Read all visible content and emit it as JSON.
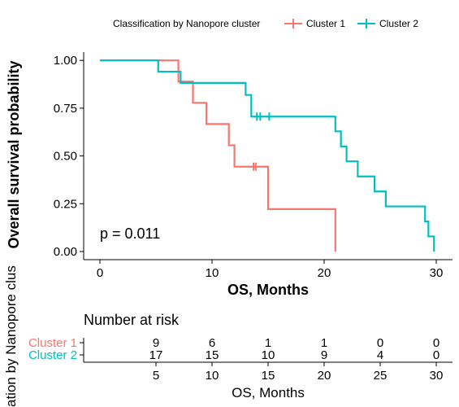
{
  "legend": {
    "title": "Classification by Nanopore cluster",
    "entries": [
      "Cluster 1",
      "Cluster 2"
    ]
  },
  "colors": {
    "cluster1": "#F8766D",
    "cluster2": "#00BFC4"
  },
  "chart_data": {
    "type": "line",
    "subtype": "kaplan-meier",
    "xlabel": "OS, Months",
    "ylabel": "Overall survival probability",
    "xlim": [
      0,
      31
    ],
    "ylim": [
      0,
      1.05
    ],
    "x_ticks": [
      "0",
      "10",
      "20",
      "30"
    ],
    "y_ticks": [
      "0.00",
      "0.25",
      "0.50",
      "0.75",
      "1.00"
    ],
    "grid": false,
    "legend_position": "top",
    "annotation": "p = 0.011",
    "series": [
      {
        "name": "Cluster 1",
        "color": "#F8766D",
        "steps": [
          [
            0,
            1.0
          ],
          [
            7.0,
            0.889
          ],
          [
            8.3,
            0.778
          ],
          [
            9.5,
            0.667
          ],
          [
            11.5,
            0.556
          ],
          [
            12.0,
            0.444
          ],
          [
            15.0,
            0.222
          ],
          [
            21.0,
            0.0
          ]
        ],
        "end_x": 21.0,
        "censor": [
          [
            13.7,
            0.444
          ],
          [
            13.9,
            0.444
          ]
        ]
      },
      {
        "name": "Cluster 2",
        "color": "#00BFC4",
        "steps": [
          [
            0,
            1.0
          ],
          [
            5.2,
            0.941
          ],
          [
            7.2,
            0.882
          ],
          [
            13.0,
            0.819
          ],
          [
            13.5,
            0.706
          ],
          [
            21.0,
            0.629
          ],
          [
            21.5,
            0.55
          ],
          [
            22.0,
            0.472
          ],
          [
            23.0,
            0.393
          ],
          [
            24.5,
            0.314
          ],
          [
            25.5,
            0.236
          ],
          [
            29.0,
            0.157
          ],
          [
            29.3,
            0.079
          ],
          [
            29.8,
            0.0
          ]
        ],
        "end_x": 29.8,
        "censor": [
          [
            14.0,
            0.706
          ],
          [
            14.3,
            0.706
          ],
          [
            15.1,
            0.706
          ]
        ]
      }
    ]
  },
  "risk_table": {
    "title": "Number at risk",
    "ylabel_visible": "ation by Nanopore clus",
    "xlabel": "OS, Months",
    "time_points": [
      5,
      10,
      15,
      20,
      25,
      30
    ],
    "time_labels": [
      "5",
      "10",
      "15",
      "20",
      "25",
      "30"
    ],
    "rows": [
      {
        "label": "Cluster  1",
        "values": [
          "9",
          "6",
          "1",
          "1",
          "0",
          "0"
        ]
      },
      {
        "label": "Cluster  2",
        "values": [
          "17",
          "15",
          "10",
          "9",
          "4",
          "0"
        ]
      }
    ]
  }
}
